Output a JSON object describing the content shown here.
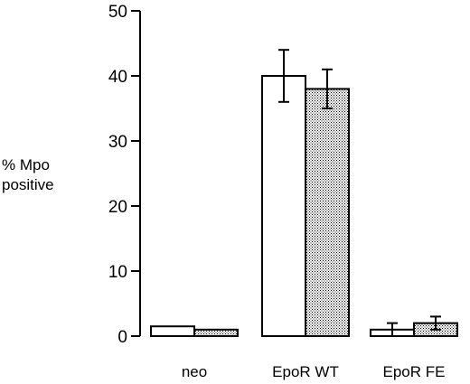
{
  "chart_data": {
    "type": "bar",
    "ylabel_line1": "% Mpo",
    "ylabel_line2": "positive",
    "xlabel": "",
    "ylim": [
      0,
      50
    ],
    "yticks": [
      "0",
      "10",
      "20",
      "30",
      "40",
      "50"
    ],
    "categories": [
      "neo",
      "EpoR WT",
      "EpoR FE"
    ],
    "series": [
      {
        "values": [
          1.5,
          40,
          1
        ],
        "errors": [
          0,
          4,
          1
        ],
        "fill": "plain"
      },
      {
        "values": [
          1,
          38,
          2
        ],
        "errors": [
          0,
          3,
          1
        ],
        "fill": "dotted"
      }
    ],
    "grid": false
  }
}
